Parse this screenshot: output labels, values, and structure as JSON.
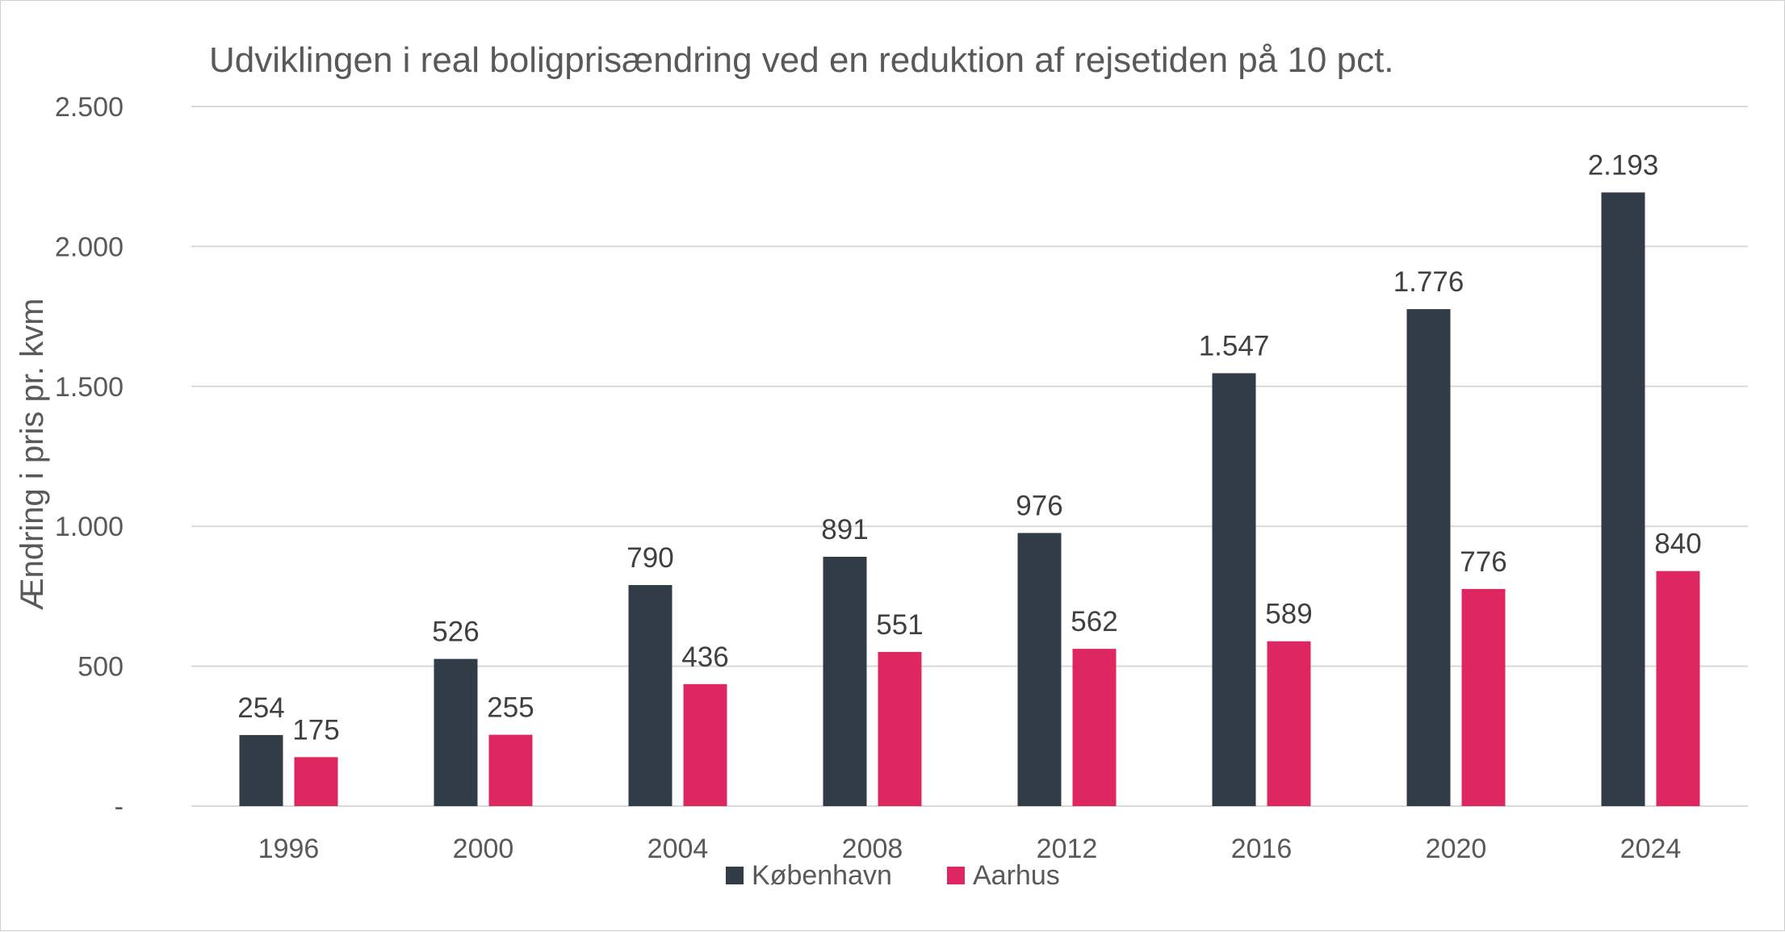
{
  "chart_data": {
    "type": "bar",
    "title": "Udviklingen i real boligprisændring ved en reduktion af rejsetiden på 10 pct.",
    "xlabel": "",
    "ylabel": "Ændring i pris pr. kvm",
    "categories": [
      "1996",
      "2000",
      "2004",
      "2008",
      "2012",
      "2016",
      "2020",
      "2024"
    ],
    "series": [
      {
        "name": "København",
        "color": "#323c46",
        "values": [
          254,
          526,
          790,
          891,
          976,
          1547,
          1776,
          2193
        ],
        "labels": [
          "254",
          "526",
          "790",
          "891",
          "976",
          "1.547",
          "1.776",
          "2.193"
        ]
      },
      {
        "name": "Aarhus",
        "color": "#de2760",
        "values": [
          175,
          255,
          436,
          551,
          562,
          589,
          776,
          840
        ],
        "labels": [
          "175",
          "255",
          "436",
          "551",
          "562",
          "589",
          "776",
          "840"
        ]
      }
    ],
    "ylim": [
      0,
      2500
    ],
    "yticks": [
      0,
      500,
      1000,
      1500,
      2000,
      2500
    ],
    "ytick_labels": [
      "-",
      "500",
      "1.000",
      "1.500",
      "2.000",
      "2.500"
    ],
    "grid": true,
    "legend_position": "bottom"
  }
}
